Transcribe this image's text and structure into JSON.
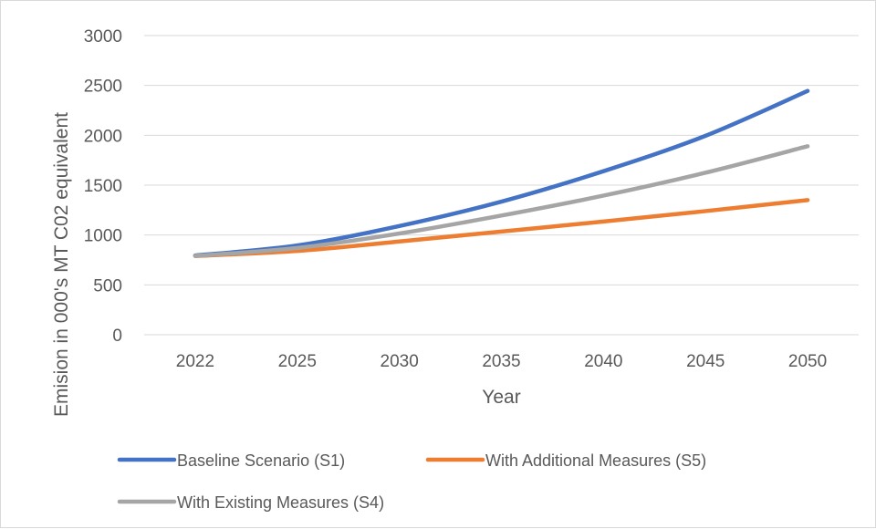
{
  "chart_data": {
    "type": "line",
    "categories": [
      "2022",
      "2025",
      "2030",
      "2035",
      "2040",
      "2045",
      "2050"
    ],
    "series": [
      {
        "name": "Baseline Scenario (S1)",
        "color": "#4472c4",
        "values": [
          795,
          895,
          1090,
          1335,
          1640,
          1995,
          2445
        ]
      },
      {
        "name": "With Additional Measures (S5)",
        "color": "#ed7d31",
        "values": [
          790,
          840,
          935,
          1035,
          1135,
          1240,
          1350
        ]
      },
      {
        "name": "With Existing Measures (S4)",
        "color": "#a5a5a5",
        "values": [
          790,
          870,
          1015,
          1195,
          1395,
          1625,
          1890
        ]
      }
    ],
    "xlabel": "Year",
    "ylabel": "Emision in 000's MT C02 equivalent",
    "ylim": [
      0,
      3000
    ],
    "yticks": [
      0,
      500,
      1000,
      1500,
      2000,
      2500,
      3000
    ],
    "grid": true,
    "legend_position": "bottom"
  }
}
